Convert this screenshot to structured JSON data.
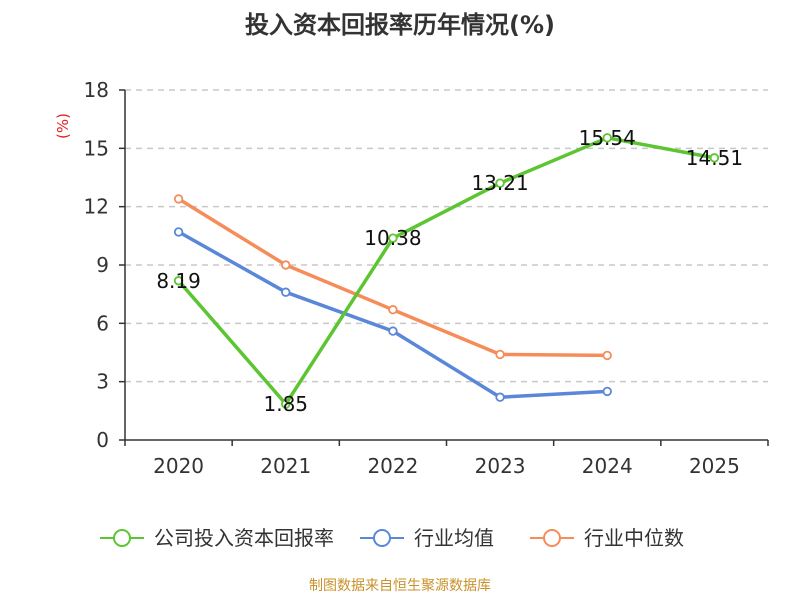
{
  "chart_data": {
    "type": "line",
    "title": "投入资本回报率历年情况(%)",
    "ylabel": "(%)",
    "categories": [
      "2020",
      "2021",
      "2022",
      "2023",
      "2024",
      "2025"
    ],
    "ylim": [
      0,
      18
    ],
    "yticks": [
      0,
      3,
      6,
      9,
      12,
      15,
      18
    ],
    "grid": true,
    "legend_position": "bottom",
    "series": [
      {
        "name": "公司投入资本回报率",
        "color": "#5cc531",
        "values": [
          8.19,
          1.85,
          10.38,
          13.21,
          15.54,
          14.51
        ],
        "labels": [
          "8.19",
          "1.85",
          "10.38",
          "13.21",
          "15.54",
          "14.51"
        ]
      },
      {
        "name": "行业均值",
        "color": "#5b87d9",
        "values": [
          10.7,
          7.6,
          5.6,
          2.2,
          2.5,
          null
        ]
      },
      {
        "name": "行业中位数",
        "color": "#f58d5b",
        "values": [
          12.4,
          9.0,
          6.7,
          4.4,
          4.35,
          null
        ]
      }
    ]
  },
  "source": "制图数据来自恒生聚源数据库"
}
